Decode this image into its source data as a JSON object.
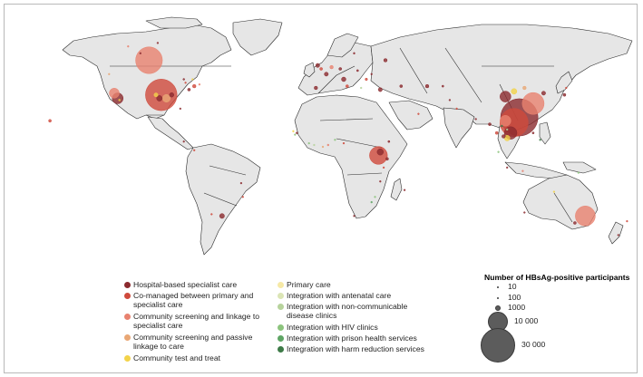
{
  "colors": {
    "ocean": "#ffffff",
    "land": "#e6e6e6",
    "border": "#2a2a2a",
    "hospital": "#8b2a2e",
    "comanaged": "#cf4a3c",
    "community_specialist": "#e8826f",
    "community_passive": "#e9a775",
    "community_test_treat": "#f3d34a",
    "primary_care": "#f6e9a6",
    "antenatal": "#dbe5b5",
    "ncd": "#b7d39c",
    "hiv": "#8cc47d",
    "prison": "#5ea564",
    "harm_reduction": "#3d7a47"
  },
  "legend": {
    "categories": [
      {
        "label": "Hospital-based specialist care",
        "color_key": "hospital"
      },
      {
        "label": "Co-managed between primary and specialist care",
        "color_key": "comanaged"
      },
      {
        "label": "Community screening and linkage to specialist care",
        "color_key": "community_specialist"
      },
      {
        "label": "Community screening and passive linkage to care",
        "color_key": "community_passive"
      },
      {
        "label": "Community test and treat",
        "color_key": "community_test_treat"
      },
      {
        "label": "Primary care",
        "color_key": "primary_care"
      },
      {
        "label": "Integration with antenatal care",
        "color_key": "antenatal"
      },
      {
        "label": "Integration with non-communicable disease clinics",
        "color_key": "ncd"
      },
      {
        "label": "Integration with HIV clinics",
        "color_key": "hiv"
      },
      {
        "label": "Integration with prison health services",
        "color_key": "prison"
      },
      {
        "label": "Integration with harm reduction services",
        "color_key": "harm_reduction"
      }
    ],
    "size_title": "Number of HBsAg-positive participants",
    "sizes": [
      {
        "label": "10",
        "value": 10
      },
      {
        "label": "100",
        "value": 100
      },
      {
        "label": "1000",
        "value": 1000
      },
      {
        "label": "10 000",
        "value": 10000
      },
      {
        "label": "30 000",
        "value": 30000
      }
    ]
  },
  "map_points": [
    {
      "lon": -100,
      "lat": 56,
      "n": 18000,
      "cat": "community_specialist"
    },
    {
      "lon": -105,
      "lat": 60,
      "n": 40,
      "cat": "hospital"
    },
    {
      "lon": -112,
      "lat": 64,
      "n": 60,
      "cat": "community_specialist"
    },
    {
      "lon": -95,
      "lat": 66,
      "n": 30,
      "cat": "hospital"
    },
    {
      "lon": -80,
      "lat": 45,
      "n": 80,
      "cat": "hospital"
    },
    {
      "lon": -79,
      "lat": 43,
      "n": 60,
      "cat": "comanaged"
    },
    {
      "lon": -75,
      "lat": 45,
      "n": 40,
      "cat": "community_test_treat"
    },
    {
      "lon": -123,
      "lat": 48,
      "n": 40,
      "cat": "community_passive"
    },
    {
      "lon": -118,
      "lat": 34,
      "n": 3000,
      "cat": "hospital"
    },
    {
      "lon": -120,
      "lat": 37,
      "n": 2500,
      "cat": "community_specialist"
    },
    {
      "lon": -117,
      "lat": 33,
      "n": 80,
      "cat": "community_test_treat"
    },
    {
      "lon": -93,
      "lat": 36,
      "n": 25000,
      "cat": "comanaged"
    },
    {
      "lon": -90,
      "lat": 34,
      "n": 1500,
      "cat": "community_passive"
    },
    {
      "lon": -94,
      "lat": 34,
      "n": 800,
      "cat": "hospital"
    },
    {
      "lon": -96,
      "lat": 36,
      "n": 400,
      "cat": "community_test_treat"
    },
    {
      "lon": -87,
      "lat": 36,
      "n": 500,
      "cat": "hospital"
    },
    {
      "lon": -77,
      "lat": 39,
      "n": 200,
      "cat": "hospital"
    },
    {
      "lon": -74,
      "lat": 41,
      "n": 300,
      "cat": "comanaged"
    },
    {
      "lon": -71,
      "lat": 42,
      "n": 60,
      "cat": "community_specialist"
    },
    {
      "lon": -82,
      "lat": 28,
      "n": 40,
      "cat": "hospital"
    },
    {
      "lon": -157,
      "lat": 21,
      "n": 200,
      "cat": "comanaged"
    },
    {
      "lon": -80,
      "lat": 9,
      "n": 20,
      "cat": "hospital"
    },
    {
      "lon": -74,
      "lat": 4,
      "n": 15,
      "cat": "comanaged"
    },
    {
      "lon": -47,
      "lat": -15,
      "n": 20,
      "cat": "hospital"
    },
    {
      "lon": -46,
      "lat": -23,
      "n": 40,
      "cat": "comanaged"
    },
    {
      "lon": -58,
      "lat": -34,
      "n": 600,
      "cat": "hospital"
    },
    {
      "lon": -64,
      "lat": -33,
      "n": 30,
      "cat": "comanaged"
    },
    {
      "lon": -3,
      "lat": 53,
      "n": 400,
      "cat": "hospital"
    },
    {
      "lon": -1,
      "lat": 51,
      "n": 200,
      "cat": "comanaged"
    },
    {
      "lon": 2,
      "lat": 48,
      "n": 400,
      "cat": "hospital"
    },
    {
      "lon": 5,
      "lat": 52,
      "n": 300,
      "cat": "community_specialist"
    },
    {
      "lon": 10,
      "lat": 51,
      "n": 200,
      "cat": "hospital"
    },
    {
      "lon": 12,
      "lat": 45,
      "n": 500,
      "cat": "hospital"
    },
    {
      "lon": 14,
      "lat": 41,
      "n": 200,
      "cat": "comanaged"
    },
    {
      "lon": -4,
      "lat": 40,
      "n": 300,
      "cat": "hospital"
    },
    {
      "lon": 20,
      "lat": 50,
      "n": 100,
      "cat": "hospital"
    },
    {
      "lon": 25,
      "lat": 45,
      "n": 150,
      "cat": "comanaged"
    },
    {
      "lon": 18,
      "lat": 60,
      "n": 80,
      "cat": "hospital"
    },
    {
      "lon": 22,
      "lat": 40,
      "n": 60,
      "cat": "ncd"
    },
    {
      "lon": 28,
      "lat": 48,
      "n": 60,
      "cat": "hospital"
    },
    {
      "lon": 33,
      "lat": 39,
      "n": 400,
      "cat": "hospital"
    },
    {
      "lon": 36,
      "lat": 56,
      "n": 300,
      "cat": "hospital"
    },
    {
      "lon": 45,
      "lat": 41,
      "n": 200,
      "cat": "hospital"
    },
    {
      "lon": 55,
      "lat": 25,
      "n": 30,
      "cat": "comanaged"
    },
    {
      "lon": 60,
      "lat": 41,
      "n": 300,
      "cat": "hospital"
    },
    {
      "lon": 69,
      "lat": 41,
      "n": 100,
      "cat": "hospital"
    },
    {
      "lon": 73,
      "lat": 33,
      "n": 40,
      "cat": "hospital"
    },
    {
      "lon": 77,
      "lat": 28,
      "n": 60,
      "cat": "comanaged"
    },
    {
      "lon": 88,
      "lat": 22,
      "n": 40,
      "cat": "hospital"
    },
    {
      "lon": -15,
      "lat": 14,
      "n": 80,
      "cat": "hospital"
    },
    {
      "lon": -17,
      "lat": 15,
      "n": 60,
      "cat": "community_test_treat"
    },
    {
      "lon": -16,
      "lat": 13,
      "n": 40,
      "cat": "hiv"
    },
    {
      "lon": -8,
      "lat": 8,
      "n": 60,
      "cat": "hiv"
    },
    {
      "lon": -5,
      "lat": 7,
      "n": 50,
      "cat": "ncd"
    },
    {
      "lon": 0,
      "lat": 6,
      "n": 40,
      "cat": "community_passive"
    },
    {
      "lon": 3,
      "lat": 7,
      "n": 80,
      "cat": "community_specialist"
    },
    {
      "lon": 7,
      "lat": 10,
      "n": 30,
      "cat": "hiv"
    },
    {
      "lon": 12,
      "lat": 8,
      "n": 20,
      "cat": "comanaged"
    },
    {
      "lon": 32,
      "lat": 1,
      "n": 8000,
      "cat": "comanaged"
    },
    {
      "lon": 33,
      "lat": 3,
      "n": 1000,
      "cat": "hospital"
    },
    {
      "lon": 37,
      "lat": -1,
      "n": 200,
      "cat": "hospital"
    },
    {
      "lon": 38,
      "lat": 9,
      "n": 100,
      "cat": "hospital"
    },
    {
      "lon": 35,
      "lat": -6,
      "n": 60,
      "cat": "comanaged"
    },
    {
      "lon": 33,
      "lat": -14,
      "n": 30,
      "cat": "hospital"
    },
    {
      "lon": 28,
      "lat": -26,
      "n": 60,
      "cat": "prison"
    },
    {
      "lon": 30,
      "lat": -23,
      "n": 40,
      "cat": "hiv"
    },
    {
      "lon": 18,
      "lat": -34,
      "n": 40,
      "cat": "hospital"
    },
    {
      "lon": 47,
      "lat": -19,
      "n": 20,
      "cat": "hospital"
    },
    {
      "lon": 105,
      "lat": 35,
      "n": 3000,
      "cat": "hospital"
    },
    {
      "lon": 116,
      "lat": 40,
      "n": 300,
      "cat": "community_passive"
    },
    {
      "lon": 110,
      "lat": 38,
      "n": 800,
      "cat": "community_test_treat"
    },
    {
      "lon": 121,
      "lat": 31,
      "n": 12000,
      "cat": "community_specialist"
    },
    {
      "lon": 113,
      "lat": 23,
      "n": 35000,
      "cat": "hospital"
    },
    {
      "lon": 110,
      "lat": 20,
      "n": 20000,
      "cat": "comanaged"
    },
    {
      "lon": 105,
      "lat": 21,
      "n": 3000,
      "cat": "community_specialist"
    },
    {
      "lon": 108,
      "lat": 14,
      "n": 4000,
      "cat": "hospital"
    },
    {
      "lon": 106,
      "lat": 11,
      "n": 800,
      "cat": "community_test_treat"
    },
    {
      "lon": 104,
      "lat": 12,
      "n": 300,
      "cat": "hospital"
    },
    {
      "lon": 100,
      "lat": 14,
      "n": 200,
      "cat": "comanaged"
    },
    {
      "lon": 101,
      "lat": 3,
      "n": 60,
      "cat": "hiv"
    },
    {
      "lon": 96,
      "lat": 19,
      "n": 200,
      "cat": "hospital"
    },
    {
      "lon": 103,
      "lat": 18,
      "n": 80,
      "cat": "harm_reduction"
    },
    {
      "lon": 106,
      "lat": 16,
      "n": 40,
      "cat": "ncd"
    },
    {
      "lon": 127,
      "lat": 37,
      "n": 400,
      "cat": "hospital"
    },
    {
      "lon": 139,
      "lat": 36,
      "n": 200,
      "cat": "hospital"
    },
    {
      "lon": 140,
      "lat": 40,
      "n": 60,
      "cat": "comanaged"
    },
    {
      "lon": 121,
      "lat": 14,
      "n": 100,
      "cat": "hospital"
    },
    {
      "lon": 125,
      "lat": 10,
      "n": 60,
      "cat": "harm_reduction"
    },
    {
      "lon": 106,
      "lat": -6,
      "n": 60,
      "cat": "hospital"
    },
    {
      "lon": 115,
      "lat": -8,
      "n": 40,
      "cat": "community_specialist"
    },
    {
      "lon": 147,
      "lat": -9,
      "n": 40,
      "cat": "hiv"
    },
    {
      "lon": 151,
      "lat": -34,
      "n": 10000,
      "cat": "community_specialist"
    },
    {
      "lon": 145,
      "lat": -38,
      "n": 200,
      "cat": "hospital"
    },
    {
      "lon": 133,
      "lat": -20,
      "n": 60,
      "cat": "community_test_treat"
    },
    {
      "lon": 116,
      "lat": -32,
      "n": 30,
      "cat": "hospital"
    },
    {
      "lon": 175,
      "lat": -37,
      "n": 60,
      "cat": "comanaged"
    },
    {
      "lon": 170,
      "lat": -45,
      "n": 30,
      "cat": "hospital"
    }
  ]
}
